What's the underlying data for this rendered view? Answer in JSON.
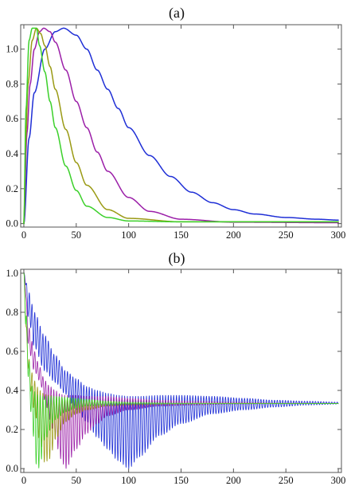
{
  "colors": {
    "blue": "#1f2fd6",
    "purple": "#9b1fa8",
    "olive": "#9a9a14",
    "green": "#3bd02a"
  },
  "chart_data": [
    {
      "type": "line",
      "panel_label": "(a)",
      "xlim": [
        -3,
        303
      ],
      "ylim": [
        -0.02,
        1.14
      ],
      "x_ticks": [
        0,
        50,
        100,
        150,
        200,
        250,
        300
      ],
      "y_ticks": [
        0.0,
        0.2,
        0.4,
        0.6,
        0.8,
        1.0
      ],
      "y_tick_labels": [
        "0.0",
        "0.2",
        "0.4",
        "0.6",
        "0.8",
        "1.0"
      ],
      "grid": false,
      "series": [
        {
          "color": "#1f2fd6",
          "x": [
            0,
            5,
            10,
            20,
            30,
            38,
            50,
            60,
            70,
            80,
            90,
            100,
            120,
            140,
            160,
            180,
            200,
            220,
            250,
            280,
            300
          ],
          "y": [
            0.0,
            0.49,
            0.75,
            1.0,
            1.1,
            1.12,
            1.08,
            1.0,
            0.88,
            0.77,
            0.66,
            0.55,
            0.39,
            0.27,
            0.18,
            0.12,
            0.08,
            0.055,
            0.035,
            0.025,
            0.02
          ]
        },
        {
          "color": "#9b1fa8",
          "x": [
            0,
            3,
            6,
            10,
            15,
            19,
            25,
            30,
            40,
            50,
            60,
            70,
            80,
            100,
            120,
            150,
            200,
            300
          ],
          "y": [
            0.0,
            0.52,
            0.8,
            1.0,
            1.1,
            1.12,
            1.1,
            1.04,
            0.88,
            0.7,
            0.55,
            0.41,
            0.3,
            0.15,
            0.07,
            0.025,
            0.008,
            0.005
          ]
        },
        {
          "color": "#9a9a14",
          "x": [
            0,
            2,
            4,
            8,
            12,
            16,
            20,
            25,
            30,
            40,
            50,
            60,
            80,
            100,
            150,
            300
          ],
          "y": [
            0.0,
            0.5,
            0.8,
            1.05,
            1.12,
            1.09,
            1.02,
            0.9,
            0.77,
            0.54,
            0.35,
            0.22,
            0.08,
            0.03,
            0.01,
            0.01
          ]
        },
        {
          "color": "#3bd02a",
          "x": [
            0,
            2,
            5,
            8,
            12,
            15,
            20,
            25,
            30,
            40,
            50,
            60,
            80,
            100,
            150,
            300
          ],
          "y": [
            0.0,
            0.65,
            1.05,
            1.12,
            1.12,
            1.02,
            0.87,
            0.7,
            0.55,
            0.33,
            0.19,
            0.1,
            0.035,
            0.015,
            0.01,
            0.01
          ]
        }
      ]
    },
    {
      "type": "line",
      "panel_label": "(b)",
      "xlim": [
        -3,
        303
      ],
      "ylim": [
        -0.02,
        1.02
      ],
      "x_ticks": [
        0,
        50,
        100,
        150,
        200,
        250,
        300
      ],
      "y_ticks": [
        0.0,
        0.2,
        0.4,
        0.6,
        0.8,
        1.0
      ],
      "y_tick_labels": [
        "0.0",
        "0.2",
        "0.4",
        "0.6",
        "0.8",
        "1.0"
      ],
      "grid": false,
      "steady_value": 0.333,
      "oscillation_period": 2.6,
      "series": [
        {
          "color": "#1f2fd6",
          "envelope_x": [
            0,
            5,
            10,
            20,
            30,
            40,
            50,
            60,
            70,
            80,
            90,
            100,
            110,
            130,
            150,
            180,
            210,
            240,
            270,
            300
          ],
          "upper": [
            1.0,
            0.9,
            0.8,
            0.68,
            0.58,
            0.5,
            0.46,
            0.42,
            0.4,
            0.385,
            0.375,
            0.37,
            0.37,
            0.375,
            0.375,
            0.37,
            0.36,
            0.35,
            0.345,
            0.34
          ],
          "lower": [
            1.0,
            0.75,
            0.62,
            0.5,
            0.44,
            0.38,
            0.3,
            0.24,
            0.16,
            0.1,
            0.04,
            0.0,
            0.06,
            0.17,
            0.23,
            0.28,
            0.3,
            0.315,
            0.325,
            0.33
          ]
        },
        {
          "color": "#9b1fa8",
          "envelope_x": [
            0,
            5,
            10,
            15,
            20,
            25,
            30,
            35,
            40,
            50,
            60,
            70,
            80,
            100,
            130,
            160,
            200,
            250,
            300
          ],
          "upper": [
            1.0,
            0.72,
            0.6,
            0.52,
            0.45,
            0.42,
            0.4,
            0.38,
            0.375,
            0.375,
            0.37,
            0.37,
            0.37,
            0.36,
            0.35,
            0.345,
            0.34,
            0.335,
            0.334
          ],
          "lower": [
            1.0,
            0.6,
            0.5,
            0.45,
            0.35,
            0.25,
            0.15,
            0.05,
            0.0,
            0.1,
            0.18,
            0.23,
            0.27,
            0.3,
            0.32,
            0.325,
            0.33,
            0.332,
            0.333
          ]
        },
        {
          "color": "#9a9a14",
          "envelope_x": [
            0,
            3,
            6,
            10,
            15,
            20,
            25,
            30,
            40,
            50,
            60,
            80,
            100,
            150,
            200,
            300
          ],
          "upper": [
            1.0,
            0.7,
            0.52,
            0.45,
            0.4,
            0.38,
            0.375,
            0.37,
            0.365,
            0.36,
            0.355,
            0.345,
            0.34,
            0.335,
            0.334,
            0.333
          ],
          "lower": [
            1.0,
            0.55,
            0.4,
            0.3,
            0.15,
            0.03,
            0.05,
            0.15,
            0.24,
            0.28,
            0.3,
            0.32,
            0.325,
            0.33,
            0.332,
            0.333
          ]
        },
        {
          "color": "#3bd02a",
          "envelope_x": [
            0,
            2,
            5,
            8,
            12,
            15,
            20,
            30,
            40,
            50,
            60,
            80,
            100,
            150,
            200,
            300
          ],
          "upper": [
            1.0,
            0.8,
            0.55,
            0.42,
            0.38,
            0.375,
            0.37,
            0.37,
            0.365,
            0.36,
            0.355,
            0.345,
            0.34,
            0.335,
            0.334,
            0.333
          ],
          "lower": [
            1.0,
            0.7,
            0.4,
            0.2,
            0.02,
            0.0,
            0.15,
            0.25,
            0.29,
            0.31,
            0.32,
            0.325,
            0.33,
            0.332,
            0.333,
            0.333
          ]
        }
      ]
    }
  ]
}
